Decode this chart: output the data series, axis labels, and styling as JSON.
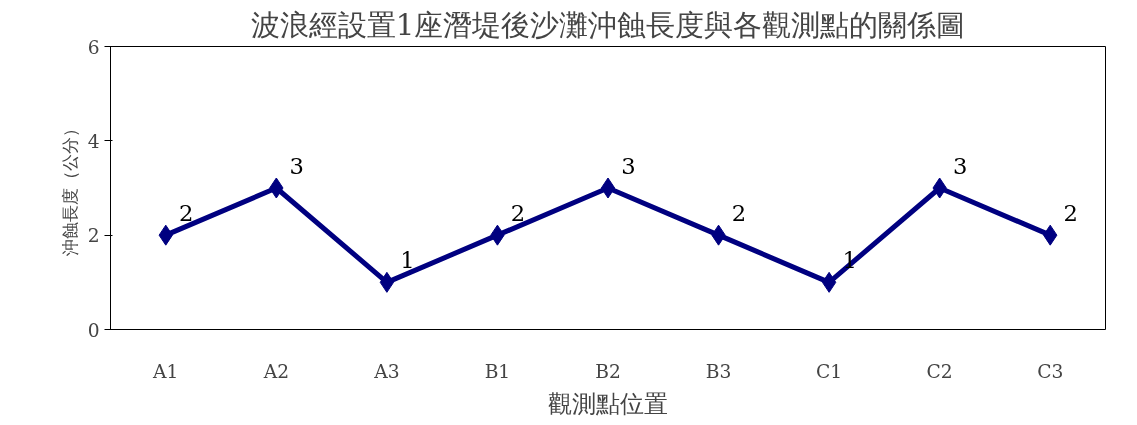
{
  "chart_data": {
    "type": "line",
    "title": "波浪經設置1座潛堤後沙灘沖蝕長度與各觀測點的關係圖",
    "xlabel": "觀測點位置",
    "ylabel": "沖蝕長度（公分）",
    "categories": [
      "A1",
      "A2",
      "A3",
      "B1",
      "B2",
      "B3",
      "C1",
      "C2",
      "C3"
    ],
    "series": [
      {
        "color": "#000080",
        "values": [
          2,
          3,
          1,
          2,
          3,
          2,
          1,
          3,
          2
        ]
      }
    ],
    "ylim": [
      0,
      6
    ],
    "yticks": [
      0,
      2,
      4,
      6
    ],
    "grid": false,
    "marker": "diamond",
    "line_style": "solid",
    "data_labels": true
  }
}
